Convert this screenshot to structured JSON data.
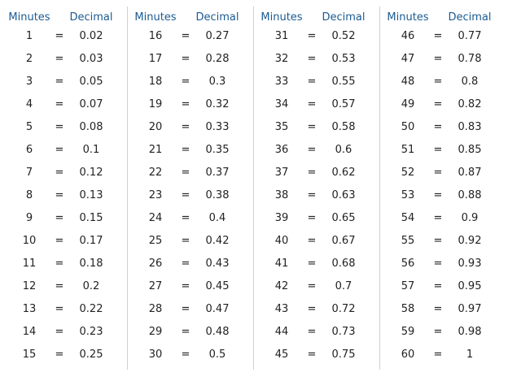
{
  "separator": "=",
  "groups": [
    {
      "headers": [
        "Minutes",
        "Decimal"
      ],
      "rows": [
        [
          1,
          0.02
        ],
        [
          2,
          0.03
        ],
        [
          3,
          0.05
        ],
        [
          4,
          0.07
        ],
        [
          5,
          0.08
        ],
        [
          6,
          0.1
        ],
        [
          7,
          0.12
        ],
        [
          8,
          0.13
        ],
        [
          9,
          0.15
        ],
        [
          10,
          0.17
        ],
        [
          11,
          0.18
        ],
        [
          12,
          0.2
        ],
        [
          13,
          0.22
        ],
        [
          14,
          0.23
        ],
        [
          15,
          0.25
        ]
      ]
    },
    {
      "headers": [
        "Minutes",
        "Decimal"
      ],
      "rows": [
        [
          16,
          0.27
        ],
        [
          17,
          0.28
        ],
        [
          18,
          0.3
        ],
        [
          19,
          0.32
        ],
        [
          20,
          0.33
        ],
        [
          21,
          0.35
        ],
        [
          22,
          0.37
        ],
        [
          23,
          0.38
        ],
        [
          24,
          0.4
        ],
        [
          25,
          0.42
        ],
        [
          26,
          0.43
        ],
        [
          27,
          0.45
        ],
        [
          28,
          0.47
        ],
        [
          29,
          0.48
        ],
        [
          30,
          0.5
        ]
      ]
    },
    {
      "headers": [
        "Minutes",
        "Decimal"
      ],
      "rows": [
        [
          31,
          0.52
        ],
        [
          32,
          0.53
        ],
        [
          33,
          0.55
        ],
        [
          34,
          0.57
        ],
        [
          35,
          0.58
        ],
        [
          36,
          0.6
        ],
        [
          37,
          0.62
        ],
        [
          38,
          0.63
        ],
        [
          39,
          0.65
        ],
        [
          40,
          0.67
        ],
        [
          41,
          0.68
        ],
        [
          42,
          0.7
        ],
        [
          43,
          0.72
        ],
        [
          44,
          0.73
        ],
        [
          45,
          0.75
        ]
      ]
    },
    {
      "headers": [
        "Minutes",
        "Decimal"
      ],
      "rows": [
        [
          46,
          0.77
        ],
        [
          47,
          0.78
        ],
        [
          48,
          0.8
        ],
        [
          49,
          0.82
        ],
        [
          50,
          0.83
        ],
        [
          51,
          0.85
        ],
        [
          52,
          0.87
        ],
        [
          53,
          0.88
        ],
        [
          54,
          0.9
        ],
        [
          55,
          0.92
        ],
        [
          56,
          0.93
        ],
        [
          57,
          0.95
        ],
        [
          58,
          0.97
        ],
        [
          59,
          0.98
        ],
        [
          60,
          1
        ]
      ]
    }
  ]
}
